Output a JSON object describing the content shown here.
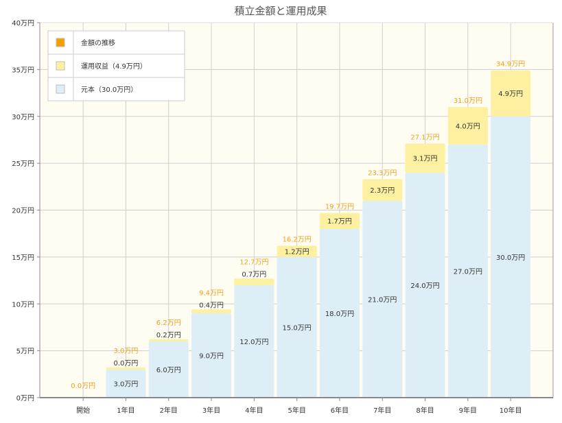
{
  "chart_data": {
    "type": "bar",
    "stacked": true,
    "title": "積立金額と運用成果",
    "categories": [
      "開始",
      "1年目",
      "2年目",
      "3年目",
      "4年目",
      "5年目",
      "6年目",
      "7年目",
      "8年目",
      "9年目",
      "10年目"
    ],
    "series": [
      {
        "name": "元本（30.0万円）",
        "color": "#ddeef6",
        "values": [
          0,
          3.0,
          6.0,
          9.0,
          12.0,
          15.0,
          18.0,
          21.0,
          24.0,
          27.0,
          30.0
        ],
        "labels": [
          "",
          "3.0万円",
          "6.0万円",
          "9.0万円",
          "12.0万円",
          "15.0万円",
          "18.0万円",
          "21.0万円",
          "24.0万円",
          "27.0万円",
          "30.0万円"
        ]
      },
      {
        "name": "運用収益（4.9万円）",
        "color": "#fdf0a0",
        "values": [
          0,
          0.0,
          0.2,
          0.4,
          0.7,
          1.2,
          1.7,
          2.3,
          3.1,
          4.0,
          4.9
        ],
        "labels": [
          "",
          "0.0万円",
          "0.2万円",
          "0.4万円",
          "0.7万円",
          "1.2万円",
          "1.7万円",
          "2.3万円",
          "3.1万円",
          "4.0万円",
          "4.9万円"
        ]
      }
    ],
    "line_series": {
      "name": "金額の推移",
      "color": "#f5a000"
    },
    "totals": [
      0.0,
      3.0,
      6.2,
      9.4,
      12.7,
      16.2,
      19.7,
      23.3,
      27.1,
      31.0,
      34.9
    ],
    "total_labels": [
      "0.0万円",
      "3.0万円",
      "6.2万円",
      "9.4万円",
      "12.7万円",
      "16.2万円",
      "19.7万円",
      "23.3万円",
      "27.1万円",
      "31.0万円",
      "34.9万円"
    ],
    "ylim": [
      0,
      40
    ],
    "yticks": [
      0,
      5,
      10,
      15,
      20,
      25,
      30,
      35,
      40
    ],
    "ytick_labels": [
      "0万円",
      "5万円",
      "10万円",
      "15万円",
      "20万円",
      "25万円",
      "30万円",
      "35万円",
      "40万円"
    ],
    "grid": true,
    "legend_position": "top-left",
    "plot_background": "#fffcf2"
  }
}
